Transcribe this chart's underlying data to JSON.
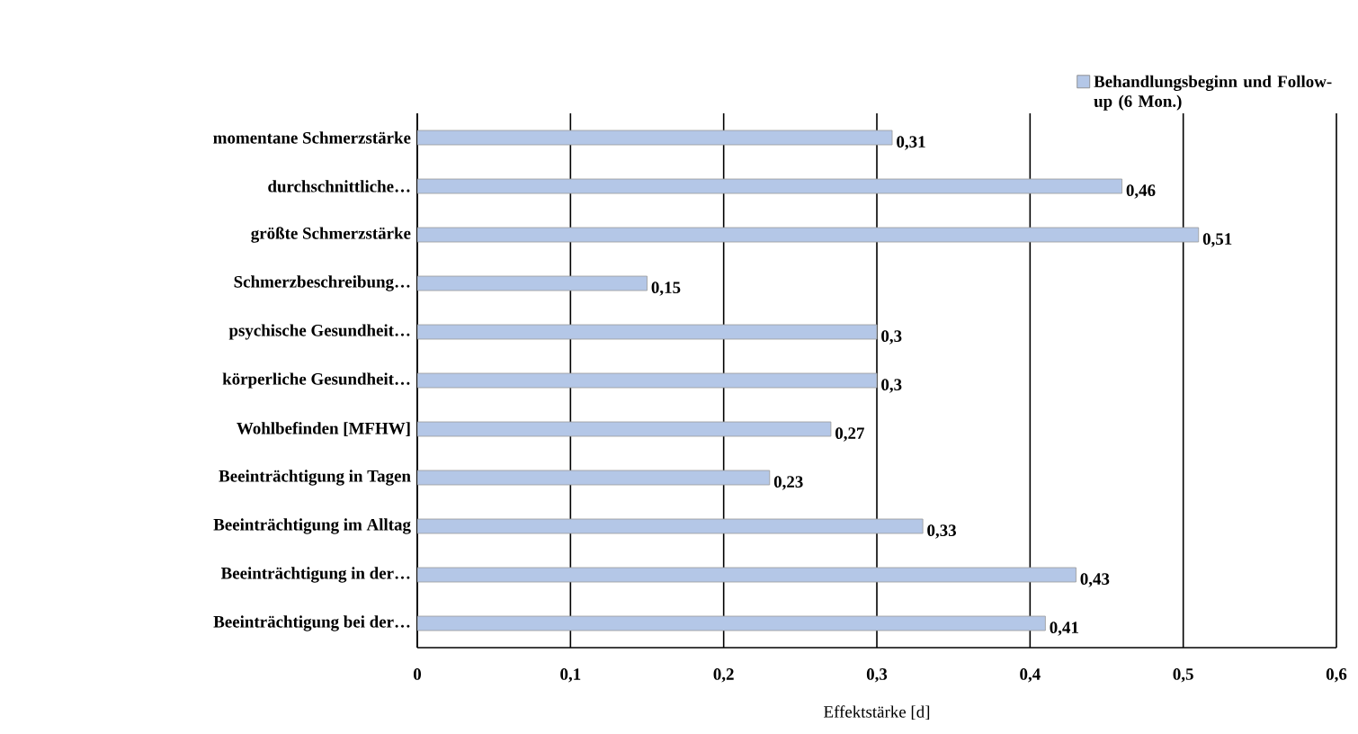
{
  "chart_data": {
    "type": "bar",
    "orientation": "horizontal",
    "xlabel": "Effektstärke [d]",
    "categories": [
      "momentane Schmerzstärke",
      "durchschnittliche…",
      "größte Schmerzstärke",
      "Schmerzbeschreibung…",
      "psychische Gesundheit…",
      "körperliche Gesundheit…",
      "Wohlbefinden [MFHW]",
      "Beeinträchtigung in Tagen",
      "Beeinträchtigung im Alltag",
      "Beeinträchtigung in der…",
      "Beeinträchtigung bei der…"
    ],
    "series": [
      {
        "name": "Behandlungsbeginn und Follow-up (6 Mon.)",
        "color": "#b4c7e7",
        "values": [
          0.31,
          0.46,
          0.51,
          0.15,
          0.3,
          0.3,
          0.27,
          0.23,
          0.33,
          0.43,
          0.41
        ],
        "value_labels": [
          "0,31",
          "0,46",
          "0,51",
          "0,15",
          "0,3",
          "0,3",
          "0,27",
          "0,23",
          "0,33",
          "0,43",
          "0,41"
        ]
      }
    ],
    "xlim": [
      0,
      0.6
    ],
    "xticks": [
      {
        "value": 0,
        "label": "0"
      },
      {
        "value": 0.1,
        "label": "0,1"
      },
      {
        "value": 0.2,
        "label": "0,2"
      },
      {
        "value": 0.3,
        "label": "0,3"
      },
      {
        "value": 0.4,
        "label": "0,4"
      },
      {
        "value": 0.5,
        "label": "0,5"
      },
      {
        "value": 0.6,
        "label": "0,6"
      }
    ],
    "grid": "x",
    "legend": "top right"
  }
}
